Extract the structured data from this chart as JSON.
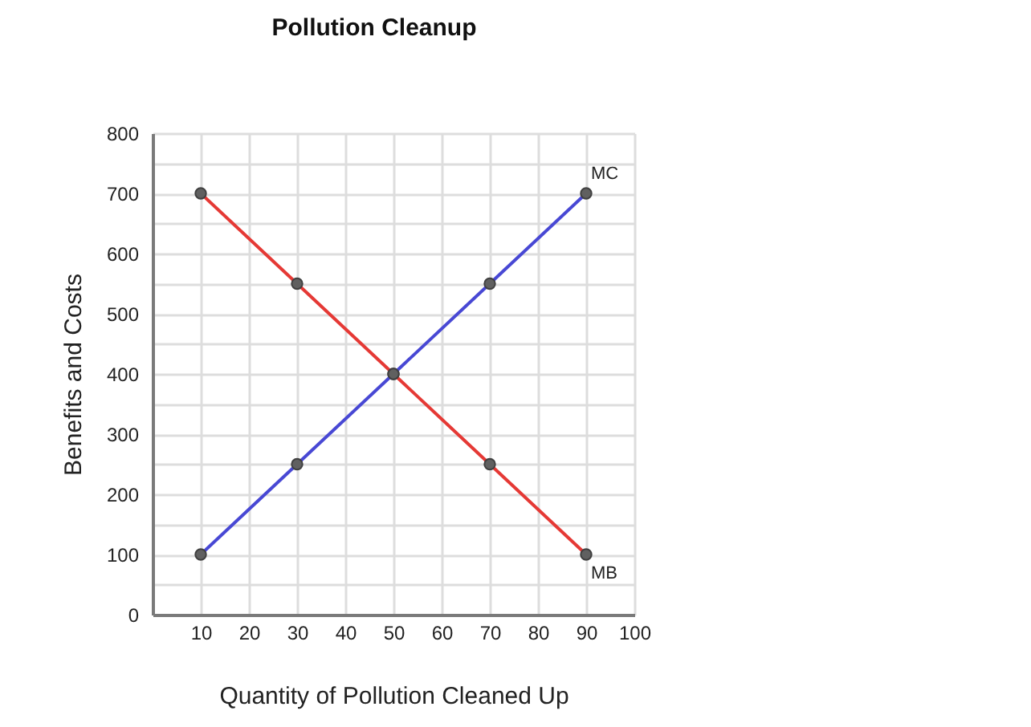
{
  "chart_data": {
    "type": "line",
    "title": "Pollution Cleanup",
    "xlabel": "Quantity of Pollution Cleaned Up",
    "ylabel": "Benefits and Costs",
    "x": [
      10,
      30,
      50,
      70,
      90
    ],
    "series": [
      {
        "name": "MB",
        "color": "#e53935",
        "values": [
          700,
          550,
          400,
          250,
          100
        ]
      },
      {
        "name": "MC",
        "color": "#4848d4",
        "values": [
          100,
          250,
          400,
          550,
          700
        ]
      }
    ],
    "xlim": [
      0,
      100
    ],
    "ylim": [
      0,
      800
    ],
    "xticks": [
      10,
      20,
      30,
      40,
      50,
      60,
      70,
      80,
      90,
      100
    ],
    "yticks": [
      0,
      {
        "value": 50,
        "label": null
      },
      100,
      {
        "value": 150,
        "label": null
      },
      200,
      {
        "value": 250,
        "label": null
      },
      300,
      {
        "value": 350,
        "label": null
      },
      400,
      {
        "value": 450,
        "label": null
      },
      500,
      {
        "value": 550,
        "label": null
      },
      600,
      {
        "value": 650,
        "label": null
      },
      700,
      {
        "value": 750,
        "label": null
      },
      800
    ],
    "grid": true,
    "legend": false,
    "marker": "circle",
    "line_style": "solid"
  }
}
